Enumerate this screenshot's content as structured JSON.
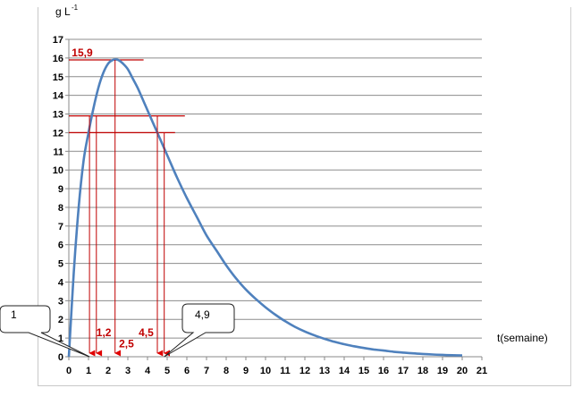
{
  "chart_data": {
    "type": "line",
    "title": "",
    "ylabel": "g L",
    "ylabel_superscript": "-1",
    "xlabel": "t(semaine)",
    "xlim": [
      0,
      21
    ],
    "ylim": [
      0,
      17
    ],
    "x_ticks": [
      0,
      1,
      2,
      3,
      4,
      5,
      6,
      7,
      8,
      9,
      10,
      11,
      12,
      13,
      14,
      15,
      16,
      17,
      18,
      19,
      20,
      21
    ],
    "y_ticks": [
      0,
      1,
      2,
      3,
      4,
      5,
      6,
      7,
      8,
      9,
      10,
      11,
      12,
      13,
      14,
      15,
      16,
      17
    ],
    "grid": "horizontal",
    "series": [
      {
        "color": "#4f81bd",
        "x": [
          0,
          0.25,
          0.5,
          0.75,
          1,
          1.25,
          1.5,
          1.75,
          2,
          2.25,
          2.5,
          2.75,
          3,
          3.25,
          3.5,
          3.75,
          4,
          4.5,
          5,
          5.5,
          6,
          6.5,
          7,
          7.5,
          8,
          8.5,
          9,
          9.5,
          10,
          10.5,
          11,
          11.5,
          12,
          12.5,
          13,
          13.5,
          14,
          14.5,
          15,
          15.5,
          16,
          16.5,
          17,
          17.5,
          18,
          18.5,
          19,
          19.5,
          20
        ],
        "y": [
          0,
          4.5,
          8,
          10.5,
          12,
          13.3,
          14.4,
          15.2,
          15.7,
          15.9,
          15.9,
          15.7,
          15.4,
          14.9,
          14.4,
          13.8,
          13.2,
          12,
          10.8,
          9.6,
          8.5,
          7.5,
          6.5,
          5.7,
          4.9,
          4.2,
          3.6,
          3.1,
          2.65,
          2.25,
          1.9,
          1.6,
          1.35,
          1.14,
          0.96,
          0.8,
          0.67,
          0.56,
          0.47,
          0.39,
          0.33,
          0.27,
          0.22,
          0.18,
          0.15,
          0.12,
          0.1,
          0.08,
          0.07
        ]
      }
    ],
    "reference_lines": [
      {
        "kind": "horizontal",
        "y": 15.9,
        "x_from": 0,
        "x_to": 3.8
      },
      {
        "kind": "horizontal",
        "y": 12.9,
        "x_from": 0,
        "x_to": 5.9
      },
      {
        "kind": "horizontal",
        "y": 12,
        "x_from": 0,
        "x_to": 5.4
      }
    ],
    "drop_lines": [
      {
        "x": 1.05,
        "y_top": 12.9,
        "color": "#c00000"
      },
      {
        "x": 1.4,
        "y_top": 12.9,
        "color": "#c00000"
      },
      {
        "x": 2.35,
        "y_top": 15.9,
        "color": "#c00000"
      },
      {
        "x": 4.5,
        "y_top": 12.9,
        "color": "#c00000"
      },
      {
        "x": 4.85,
        "y_top": 12,
        "color": "#c00000"
      }
    ],
    "annotations": [
      {
        "text": "15,9",
        "x": 0.15,
        "y": 16.1
      },
      {
        "text": "1,2",
        "x": 1.4,
        "y": 1.1
      },
      {
        "text": "2,5",
        "x": 2.55,
        "y": 0.5
      },
      {
        "text": "4,5",
        "x": 3.55,
        "y": 1.1
      }
    ],
    "callouts": [
      {
        "text": "1",
        "target_x": 1.05,
        "target_y": 0
      },
      {
        "text": "4,9",
        "target_x": 4.85,
        "target_y": 0
      }
    ]
  }
}
